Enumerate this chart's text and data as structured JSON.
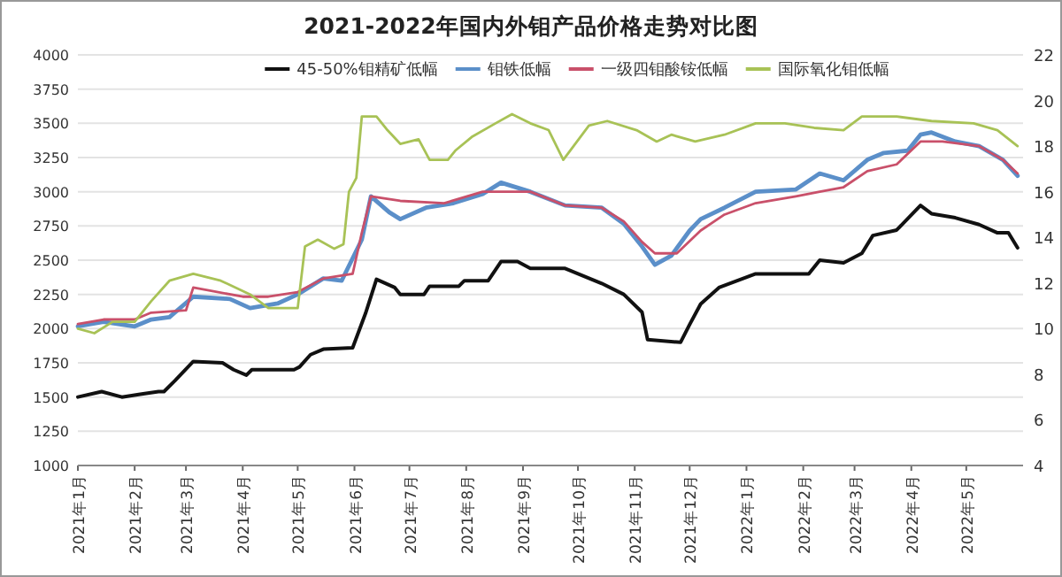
{
  "chart_data": {
    "type": "line",
    "title": "2021-2022年国内外钼产品价格走势对比图",
    "xlim": [
      "2021-01-01",
      "2022-06-01"
    ],
    "xticks": [
      {
        "value": "2021-01-01",
        "label": "2021年1月"
      },
      {
        "value": "2021-02-01",
        "label": "2021年2月"
      },
      {
        "value": "2021-03-01",
        "label": "2021年3月"
      },
      {
        "value": "2021-04-01",
        "label": "2021年4月"
      },
      {
        "value": "2021-05-01",
        "label": "2021年5月"
      },
      {
        "value": "2021-06-01",
        "label": "2021年6月"
      },
      {
        "value": "2021-07-01",
        "label": "2021年7月"
      },
      {
        "value": "2021-08-01",
        "label": "2021年8月"
      },
      {
        "value": "2021-09-01",
        "label": "2021年9月"
      },
      {
        "value": "2021-10-01",
        "label": "2021年10月"
      },
      {
        "value": "2021-11-01",
        "label": "2021年11月"
      },
      {
        "value": "2021-12-01",
        "label": "2021年12月"
      },
      {
        "value": "2022-01-01",
        "label": "2022年1月"
      },
      {
        "value": "2022-02-01",
        "label": "2022年2月"
      },
      {
        "value": "2022-03-01",
        "label": "2022年3月"
      },
      {
        "value": "2022-04-01",
        "label": "2022年4月"
      },
      {
        "value": "2022-05-01",
        "label": "2022年5月"
      }
    ],
    "ylim": [
      1000,
      4000
    ],
    "yticks": [
      1000,
      1250,
      1500,
      1750,
      2000,
      2250,
      2500,
      2750,
      3000,
      3250,
      3500,
      3750,
      4000
    ],
    "y2lim": [
      4,
      22
    ],
    "y2ticks": [
      4,
      6,
      8,
      10,
      12,
      14,
      16,
      18,
      20,
      22
    ],
    "grid": "y",
    "legend": "top",
    "line_style": "solid",
    "series": [
      {
        "name": "45-50%钼精矿低幅",
        "color": "#111111",
        "x": [
          "2021-01-01",
          "2021-01-14",
          "2021-01-25",
          "2021-02-04",
          "2021-02-14",
          "2021-02-17",
          "2021-02-23",
          "2021-03-05",
          "2021-03-21",
          "2021-03-27",
          "2021-04-03",
          "2021-04-06",
          "2021-04-29",
          "2021-05-02",
          "2021-05-08",
          "2021-05-15",
          "2021-05-31",
          "2021-06-07",
          "2021-06-13",
          "2021-06-23",
          "2021-06-26",
          "2021-07-09",
          "2021-07-12",
          "2021-07-28",
          "2021-07-31",
          "2021-08-13",
          "2021-08-17",
          "2021-08-20",
          "2021-08-29",
          "2021-09-05",
          "2021-09-24",
          "2021-10-14",
          "2021-10-26",
          "2021-11-05",
          "2021-11-08",
          "2021-11-26",
          "2021-12-01",
          "2021-12-07",
          "2021-12-17",
          "2022-01-06",
          "2022-02-04",
          "2022-02-10",
          "2022-02-23",
          "2022-03-05",
          "2022-03-11",
          "2022-03-24",
          "2022-04-06",
          "2022-04-12",
          "2022-04-25",
          "2022-05-08",
          "2022-05-18",
          "2022-05-24",
          "2022-05-29"
        ],
        "values": [
          1500,
          1540,
          1500,
          1520,
          1540,
          1540,
          1620,
          1760,
          1750,
          1700,
          1660,
          1700,
          1700,
          1720,
          1810,
          1850,
          1860,
          2110,
          2360,
          2300,
          2250,
          2250,
          2310,
          2310,
          2350,
          2350,
          2430,
          2490,
          2490,
          2440,
          2440,
          2330,
          2250,
          2120,
          1920,
          1900,
          2030,
          2180,
          2300,
          2400,
          2400,
          2500,
          2480,
          2550,
          2680,
          2720,
          2900,
          2840,
          2810,
          2760,
          2700,
          2700,
          2590
        ]
      },
      {
        "name": "钼铁低幅",
        "color": "#5b8fc9",
        "axis": "y2",
        "x": [
          "2021-01-01",
          "2021-01-15",
          "2021-02-01",
          "2021-02-10",
          "2021-02-20",
          "2021-03-05",
          "2021-03-25",
          "2021-04-05",
          "2021-04-20",
          "2021-05-01",
          "2021-05-15",
          "2021-05-25",
          "2021-06-05",
          "2021-06-10",
          "2021-06-20",
          "2021-06-26",
          "2021-07-10",
          "2021-07-25",
          "2021-08-10",
          "2021-08-20",
          "2021-09-05",
          "2021-09-24",
          "2021-10-14",
          "2021-10-26",
          "2021-11-05",
          "2021-11-12",
          "2021-11-21",
          "2021-12-01",
          "2021-12-07",
          "2021-12-20",
          "2022-01-06",
          "2022-01-28",
          "2022-02-10",
          "2022-02-23",
          "2022-03-08",
          "2022-03-17",
          "2022-03-30",
          "2022-04-06",
          "2022-04-12",
          "2022-04-25",
          "2022-05-08",
          "2022-05-21",
          "2022-05-29"
        ],
        "values": [
          10.1,
          10.3,
          10.1,
          10.4,
          10.5,
          11.4,
          11.3,
          10.9,
          11.1,
          11.5,
          12.2,
          12.1,
          13.9,
          15.8,
          15.1,
          14.8,
          15.3,
          15.5,
          15.9,
          16.4,
          16.0,
          15.4,
          15.3,
          14.6,
          13.6,
          12.8,
          13.2,
          14.3,
          14.8,
          15.3,
          16.0,
          16.1,
          16.8,
          16.5,
          17.4,
          17.7,
          17.8,
          18.5,
          18.6,
          18.2,
          18.0,
          17.4,
          16.7
        ]
      },
      {
        "name": "一级四钼酸铵低幅",
        "color": "#c9506a",
        "axis": "y2",
        "x": [
          "2021-01-01",
          "2021-01-15",
          "2021-02-01",
          "2021-02-10",
          "2021-03-01",
          "2021-03-05",
          "2021-04-01",
          "2021-04-15",
          "2021-05-01",
          "2021-05-15",
          "2021-05-31",
          "2021-06-05",
          "2021-06-10",
          "2021-06-26",
          "2021-07-20",
          "2021-08-10",
          "2021-09-05",
          "2021-09-24",
          "2021-10-14",
          "2021-10-26",
          "2021-11-05",
          "2021-11-12",
          "2021-11-24",
          "2021-12-07",
          "2021-12-20",
          "2022-01-06",
          "2022-01-28",
          "2022-02-10",
          "2022-02-23",
          "2022-03-08",
          "2022-03-24",
          "2022-04-06",
          "2022-04-18",
          "2022-05-08",
          "2022-05-21",
          "2022-05-29"
        ],
        "values": [
          10.2,
          10.4,
          10.4,
          10.7,
          10.8,
          11.8,
          11.4,
          11.4,
          11.6,
          12.2,
          12.4,
          14.2,
          15.8,
          15.6,
          15.5,
          16.0,
          16.0,
          15.4,
          15.3,
          14.7,
          13.8,
          13.3,
          13.3,
          14.3,
          15.0,
          15.5,
          15.8,
          16.0,
          16.2,
          16.9,
          17.2,
          18.2,
          18.2,
          18.0,
          17.4,
          16.8
        ]
      },
      {
        "name": "国际氧化钼低幅",
        "color": "#a8c256",
        "axis": "y2",
        "x": [
          "2021-01-01",
          "2021-01-10",
          "2021-01-20",
          "2021-02-01",
          "2021-02-10",
          "2021-02-20",
          "2021-03-05",
          "2021-03-20",
          "2021-04-05",
          "2021-04-15",
          "2021-05-01",
          "2021-05-05",
          "2021-05-12",
          "2021-05-21",
          "2021-05-26",
          "2021-05-29",
          "2021-06-02",
          "2021-06-05",
          "2021-06-13",
          "2021-06-19",
          "2021-06-26",
          "2021-07-06",
          "2021-07-12",
          "2021-07-22",
          "2021-07-26",
          "2021-08-04",
          "2021-08-17",
          "2021-08-26",
          "2021-09-05",
          "2021-09-15",
          "2021-09-23",
          "2021-10-07",
          "2021-10-17",
          "2021-11-02",
          "2021-11-13",
          "2021-11-21",
          "2021-12-04",
          "2021-12-20",
          "2022-01-06",
          "2022-01-22",
          "2022-02-07",
          "2022-02-23",
          "2022-03-05",
          "2022-03-24",
          "2022-04-12",
          "2022-05-05",
          "2022-05-18",
          "2022-05-29"
        ],
        "values": [
          10.0,
          9.8,
          10.3,
          10.3,
          11.2,
          12.1,
          12.4,
          12.1,
          11.5,
          10.9,
          10.9,
          13.6,
          13.9,
          13.5,
          13.7,
          16.0,
          16.6,
          19.3,
          19.3,
          18.7,
          18.1,
          18.3,
          17.4,
          17.4,
          17.8,
          18.4,
          19.0,
          19.4,
          19.0,
          18.7,
          17.4,
          18.9,
          19.1,
          18.7,
          18.2,
          18.5,
          18.2,
          18.5,
          19.0,
          19.0,
          18.8,
          18.7,
          19.3,
          19.3,
          19.1,
          19.0,
          18.7,
          18.0
        ]
      }
    ]
  }
}
